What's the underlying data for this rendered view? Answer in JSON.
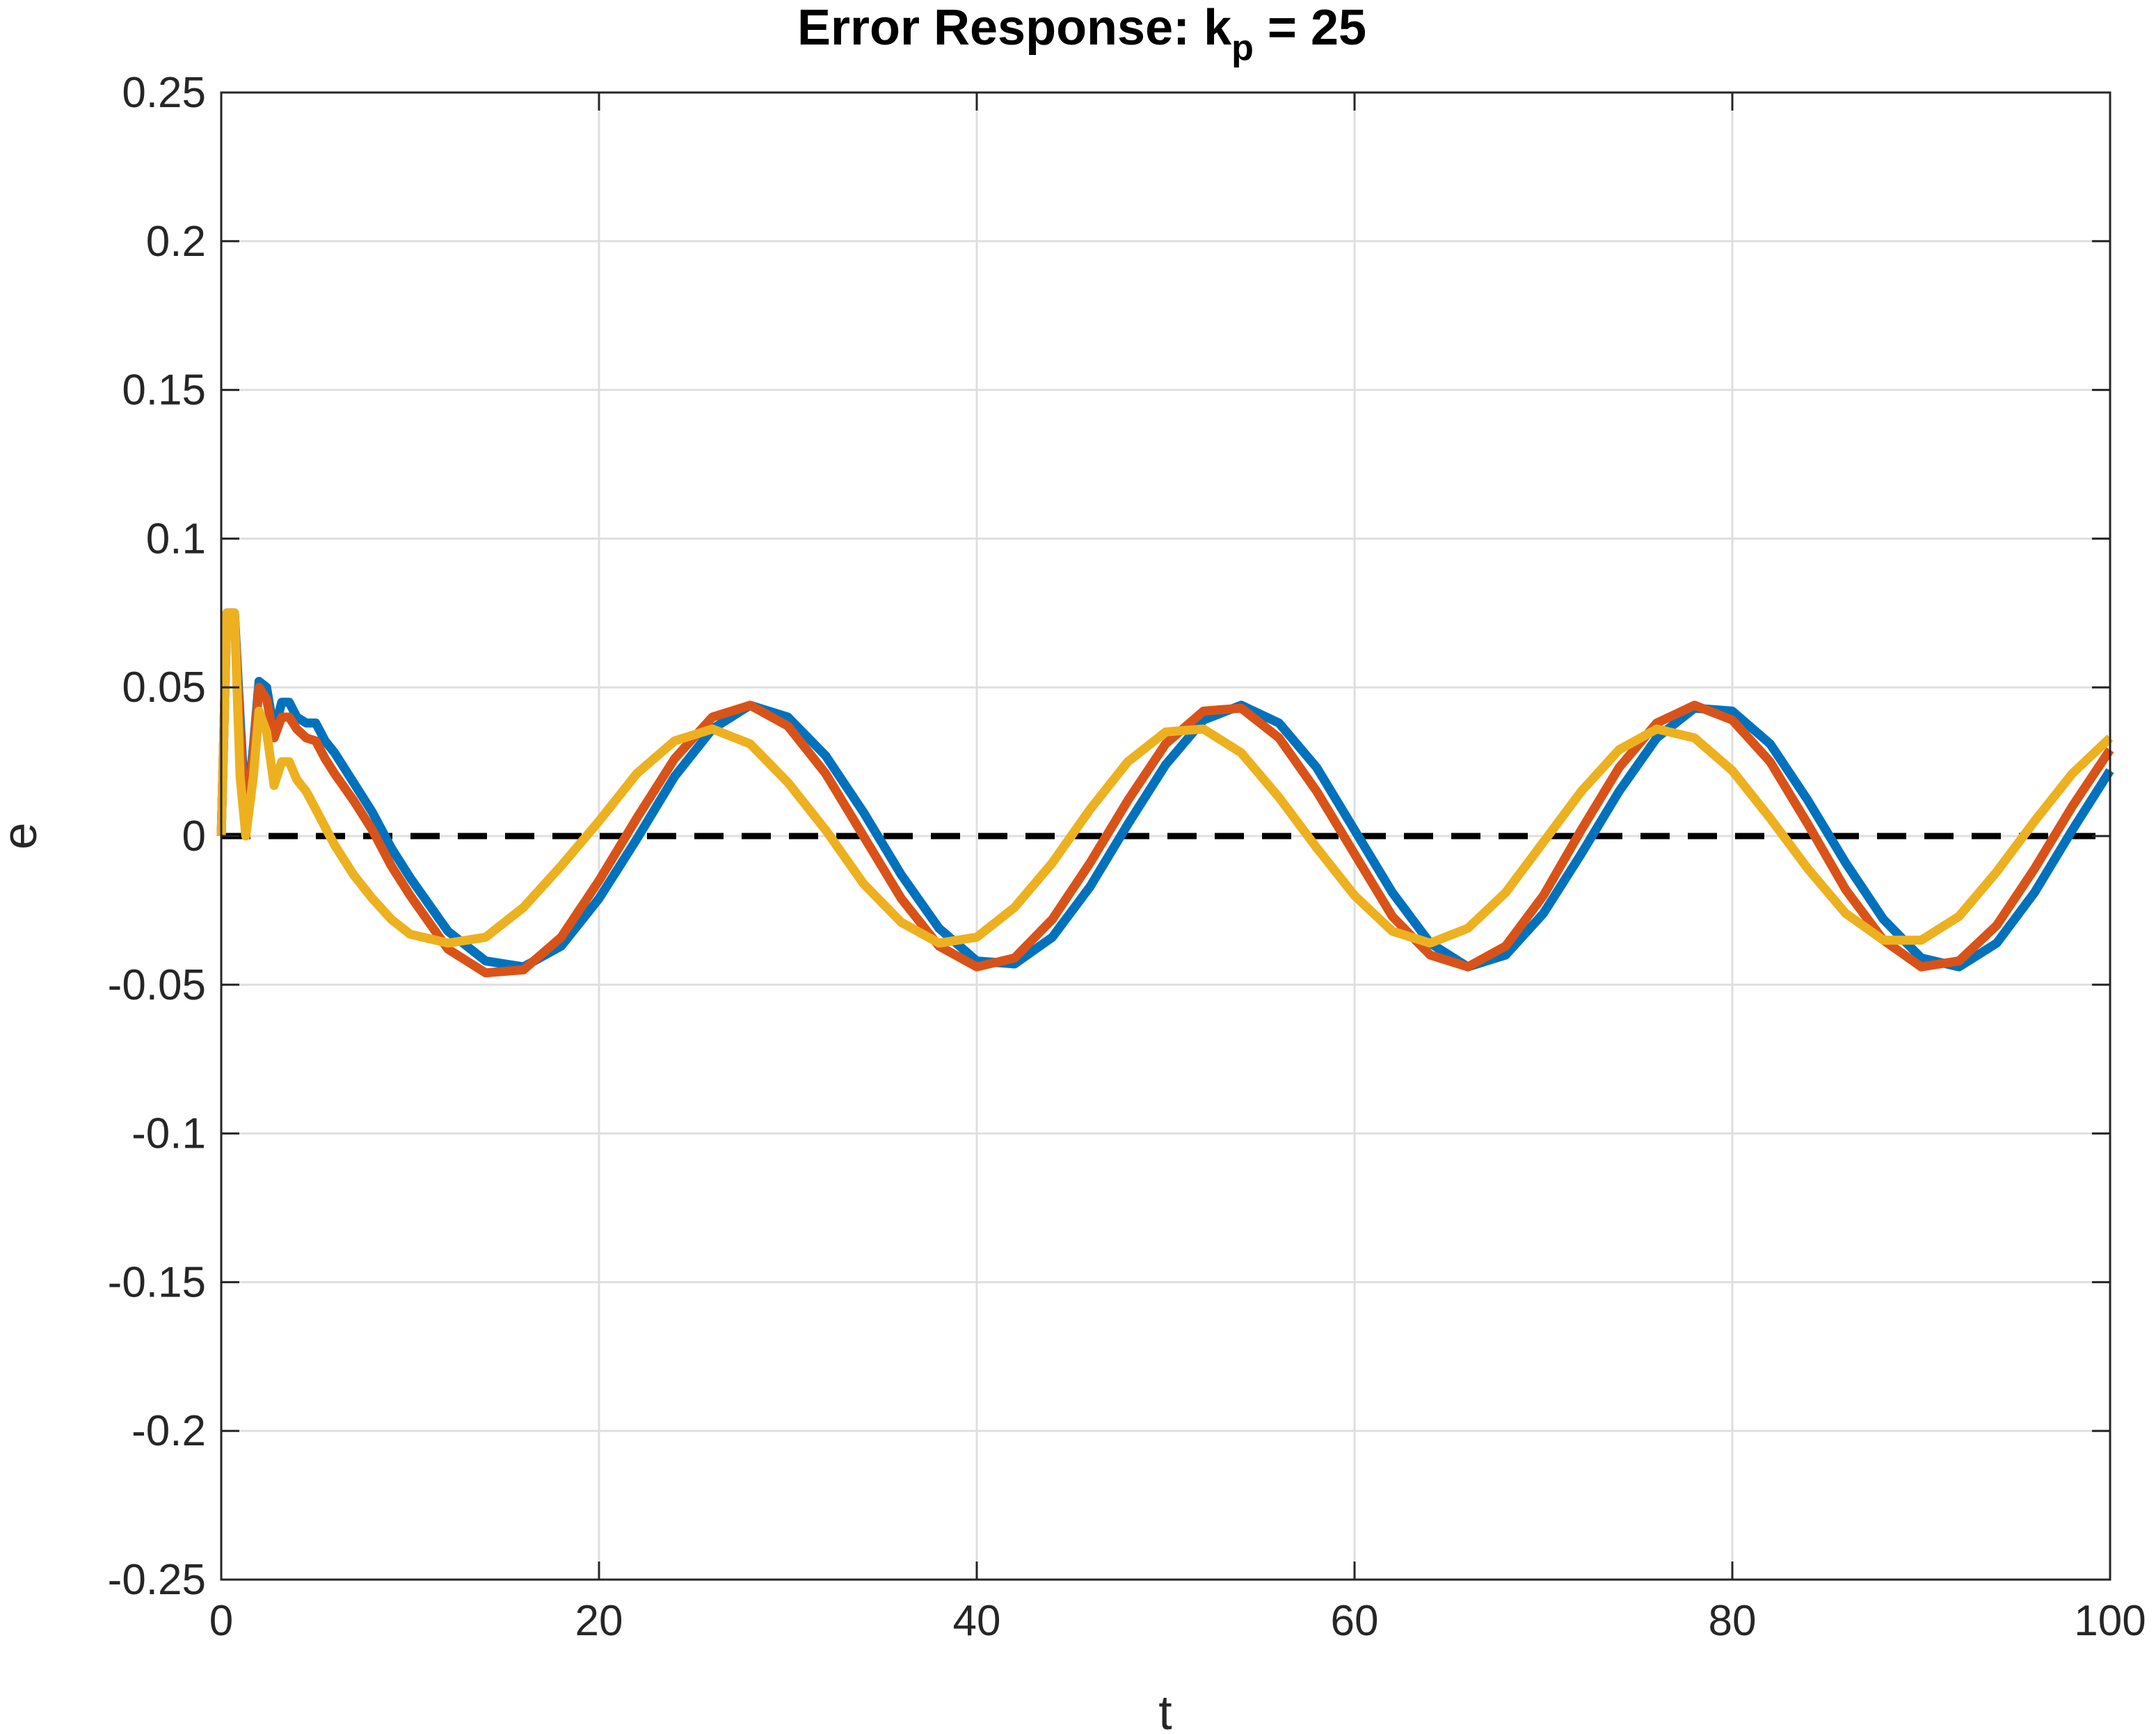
{
  "chart_data": {
    "type": "line",
    "title": {
      "prefix": "Error Response: k",
      "subscript": "p",
      "suffix": " = 25"
    },
    "xlabel": "t",
    "ylabel": "e",
    "xlim": [
      0,
      100
    ],
    "ylim": [
      -0.25,
      0.25
    ],
    "xticks": [
      0,
      20,
      40,
      60,
      80,
      100
    ],
    "yticks": [
      -0.25,
      -0.2,
      -0.15,
      -0.1,
      -0.05,
      0,
      0.05,
      0.1,
      0.15,
      0.2,
      0.25
    ],
    "xtick_labels": [
      "0",
      "20",
      "40",
      "60",
      "80",
      "100"
    ],
    "ytick_labels": [
      "-0.25",
      "-0.2",
      "-0.15",
      "-0.1",
      "-0.05",
      "0",
      "0.05",
      "0.1",
      "0.15",
      "0.2",
      "0.25"
    ],
    "grid": true,
    "legend": "none",
    "reference_line": {
      "y": 0,
      "style": "dashed",
      "color": "#000000"
    },
    "series": [
      {
        "color": "#0072BD",
        "x": [
          0,
          0.3,
          0.7,
          1.0,
          1.3,
          1.7,
          2.0,
          2.4,
          2.8,
          3.2,
          3.6,
          4.0,
          4.5,
          5.0,
          5.5,
          6.0,
          7,
          8,
          9,
          10,
          12,
          14,
          16,
          18,
          20,
          22,
          24,
          26,
          28,
          30,
          32,
          34,
          36,
          38,
          40,
          42,
          44,
          46,
          48,
          50,
          52,
          54,
          56,
          58,
          60,
          62,
          64,
          66,
          68,
          70,
          72,
          74,
          76,
          78,
          80,
          82,
          84,
          86,
          88,
          90,
          92,
          94,
          96,
          98,
          100
        ],
        "y": [
          0,
          0.075,
          0.075,
          0.04,
          0.005,
          0.03,
          0.052,
          0.05,
          0.035,
          0.045,
          0.045,
          0.04,
          0.038,
          0.038,
          0.032,
          0.028,
          0.018,
          0.008,
          -0.004,
          -0.014,
          -0.032,
          -0.042,
          -0.044,
          -0.037,
          -0.021,
          -0.001,
          0.02,
          0.036,
          0.044,
          0.04,
          0.027,
          0.008,
          -0.013,
          -0.031,
          -0.042,
          -0.043,
          -0.034,
          -0.017,
          0.004,
          0.024,
          0.039,
          0.044,
          0.038,
          0.023,
          0.002,
          -0.019,
          -0.036,
          -0.044,
          -0.04,
          -0.026,
          -0.006,
          0.015,
          0.033,
          0.043,
          0.042,
          0.031,
          0.012,
          -0.009,
          -0.028,
          -0.041,
          -0.044,
          -0.036,
          -0.019,
          0.002,
          0.022
        ]
      },
      {
        "color": "#D95319",
        "x": [
          0,
          0.3,
          0.7,
          1.0,
          1.3,
          1.7,
          2.0,
          2.4,
          2.8,
          3.2,
          3.6,
          4.0,
          4.5,
          5.0,
          5.5,
          6.0,
          7,
          8,
          9,
          10,
          12,
          14,
          16,
          18,
          20,
          22,
          24,
          26,
          28,
          30,
          32,
          34,
          36,
          38,
          40,
          42,
          44,
          46,
          48,
          50,
          52,
          54,
          56,
          58,
          60,
          62,
          64,
          66,
          68,
          70,
          72,
          74,
          76,
          78,
          80,
          82,
          84,
          86,
          88,
          90,
          92,
          94,
          96,
          98,
          100
        ],
        "y": [
          0,
          0.075,
          0.075,
          0.035,
          0.002,
          0.028,
          0.05,
          0.046,
          0.033,
          0.04,
          0.04,
          0.036,
          0.033,
          0.032,
          0.026,
          0.021,
          0.012,
          0.002,
          -0.01,
          -0.02,
          -0.038,
          -0.046,
          -0.045,
          -0.034,
          -0.015,
          0.006,
          0.026,
          0.04,
          0.044,
          0.037,
          0.021,
          0.0,
          -0.021,
          -0.037,
          -0.044,
          -0.041,
          -0.028,
          -0.009,
          0.012,
          0.031,
          0.042,
          0.043,
          0.033,
          0.015,
          -0.006,
          -0.027,
          -0.04,
          -0.044,
          -0.037,
          -0.02,
          0.002,
          0.023,
          0.038,
          0.044,
          0.039,
          0.025,
          0.004,
          -0.018,
          -0.035,
          -0.044,
          -0.042,
          -0.03,
          -0.011,
          0.01,
          0.029
        ]
      },
      {
        "color": "#EDB120",
        "x": [
          0,
          0.3,
          0.7,
          1.0,
          1.3,
          1.7,
          2.0,
          2.4,
          2.8,
          3.2,
          3.6,
          4.0,
          4.5,
          5.0,
          5.5,
          6.0,
          7,
          8,
          9,
          10,
          12,
          14,
          16,
          18,
          20,
          22,
          24,
          26,
          28,
          30,
          32,
          34,
          36,
          38,
          40,
          42,
          44,
          46,
          48,
          50,
          52,
          54,
          56,
          58,
          60,
          62,
          64,
          66,
          68,
          70,
          72,
          74,
          76,
          78,
          80,
          82,
          84,
          86,
          88,
          90,
          92,
          94,
          96,
          98,
          100
        ],
        "y": [
          0,
          0.075,
          0.075,
          0.02,
          0.0,
          0.02,
          0.042,
          0.035,
          0.017,
          0.025,
          0.025,
          0.019,
          0.015,
          0.009,
          0.003,
          -0.003,
          -0.013,
          -0.021,
          -0.028,
          -0.033,
          -0.036,
          -0.034,
          -0.024,
          -0.01,
          0.005,
          0.021,
          0.032,
          0.036,
          0.031,
          0.018,
          0.002,
          -0.016,
          -0.029,
          -0.036,
          -0.034,
          -0.024,
          -0.009,
          0.009,
          0.025,
          0.035,
          0.036,
          0.028,
          0.013,
          -0.004,
          -0.02,
          -0.032,
          -0.036,
          -0.031,
          -0.019,
          -0.002,
          0.015,
          0.029,
          0.036,
          0.033,
          0.022,
          0.006,
          -0.011,
          -0.026,
          -0.035,
          -0.035,
          -0.027,
          -0.012,
          0.005,
          0.021,
          0.033
        ]
      }
    ]
  }
}
